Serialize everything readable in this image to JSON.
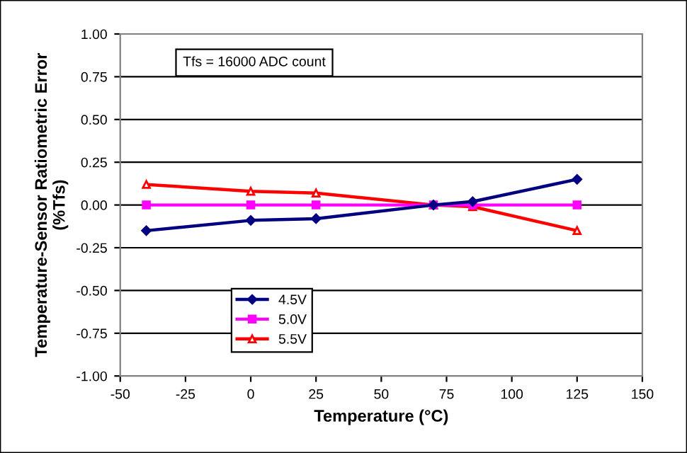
{
  "chart_data": {
    "type": "line",
    "xlabel": "Temperature (°C)",
    "ylabel": "Temperature-Sensor Ratiometric Error\n(%Tfs)",
    "x": [
      -40,
      0,
      25,
      70,
      85,
      125
    ],
    "series": [
      {
        "name": "4.5V",
        "color": "#000080",
        "marker": "diamond",
        "values": [
          -0.15,
          -0.09,
          -0.08,
          0,
          0.02,
          0.15
        ]
      },
      {
        "name": "5.0V",
        "color": "#ff00ff",
        "marker": "square",
        "values": [
          0,
          0,
          0,
          0,
          0,
          0
        ]
      },
      {
        "name": "5.5V",
        "color": "#ff0000",
        "marker": "triangle",
        "values": [
          0.12,
          0.08,
          0.07,
          0,
          -0.01,
          -0.15
        ]
      }
    ],
    "xlim": [
      -50,
      150
    ],
    "xticks": [
      -50,
      -25,
      0,
      25,
      50,
      75,
      100,
      125,
      150
    ],
    "ylim": [
      -1.0,
      1.0
    ],
    "yticks": [
      {
        "value": -1.0,
        "label": "-1.00"
      },
      {
        "value": -0.75,
        "label": "-0.75"
      },
      {
        "value": -0.5,
        "label": "-0.50"
      },
      {
        "value": -0.25,
        "label": "-0.25"
      },
      {
        "value": 0,
        "label": "0.00"
      },
      {
        "value": 0.25,
        "label": "0.25"
      },
      {
        "value": 0.5,
        "label": "0.50"
      },
      {
        "value": 0.75,
        "label": "0.75"
      },
      {
        "value": 1.0,
        "label": "1.00"
      }
    ],
    "grid": "y",
    "legend": "bottom left",
    "line_style": "solid",
    "annotations": [
      "Tfs = 16000 ADC count"
    ]
  }
}
